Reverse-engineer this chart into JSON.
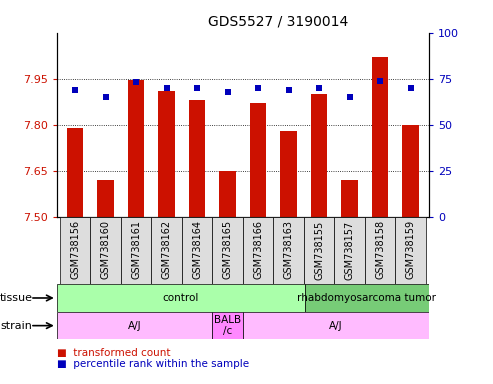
{
  "title": "GDS5527 / 3190014",
  "samples": [
    "GSM738156",
    "GSM738160",
    "GSM738161",
    "GSM738162",
    "GSM738164",
    "GSM738165",
    "GSM738166",
    "GSM738163",
    "GSM738155",
    "GSM738157",
    "GSM738158",
    "GSM738159"
  ],
  "bar_values": [
    7.79,
    7.62,
    7.945,
    7.91,
    7.88,
    7.65,
    7.87,
    7.78,
    7.9,
    7.62,
    8.02,
    7.8
  ],
  "dot_values": [
    69,
    65,
    73,
    70,
    70,
    68,
    70,
    69,
    70,
    65,
    74,
    70
  ],
  "ylim_left": [
    7.5,
    8.1
  ],
  "ylim_right": [
    0,
    100
  ],
  "yticks_left": [
    7.5,
    7.65,
    7.8,
    7.95
  ],
  "yticks_right": [
    0,
    25,
    50,
    75,
    100
  ],
  "bar_color": "#cc1100",
  "dot_color": "#0000bb",
  "grid_color": "#000000",
  "bar_bottom": 7.5,
  "tissue_labels": [
    {
      "text": "control",
      "start": 0,
      "end": 7,
      "color": "#aaffaa"
    },
    {
      "text": "rhabdomyosarcoma tumor",
      "start": 8,
      "end": 11,
      "color": "#77cc77"
    }
  ],
  "strain_labels": [
    {
      "text": "A/J",
      "start": 0,
      "end": 4,
      "color": "#ffbbff"
    },
    {
      "text": "BALB\n/c",
      "start": 5,
      "end": 5,
      "color": "#ff88ff"
    },
    {
      "text": "A/J",
      "start": 6,
      "end": 11,
      "color": "#ffbbff"
    }
  ],
  "legend_items": [
    {
      "color": "#cc1100",
      "label": "transformed count"
    },
    {
      "color": "#0000bb",
      "label": "percentile rank within the sample"
    }
  ],
  "left_tick_color": "#cc1100",
  "right_tick_color": "#0000bb",
  "xlabel_bg": "#dddddd",
  "title_fontsize": 10,
  "axis_fontsize": 8,
  "sample_fontsize": 7,
  "label_fontsize": 8
}
